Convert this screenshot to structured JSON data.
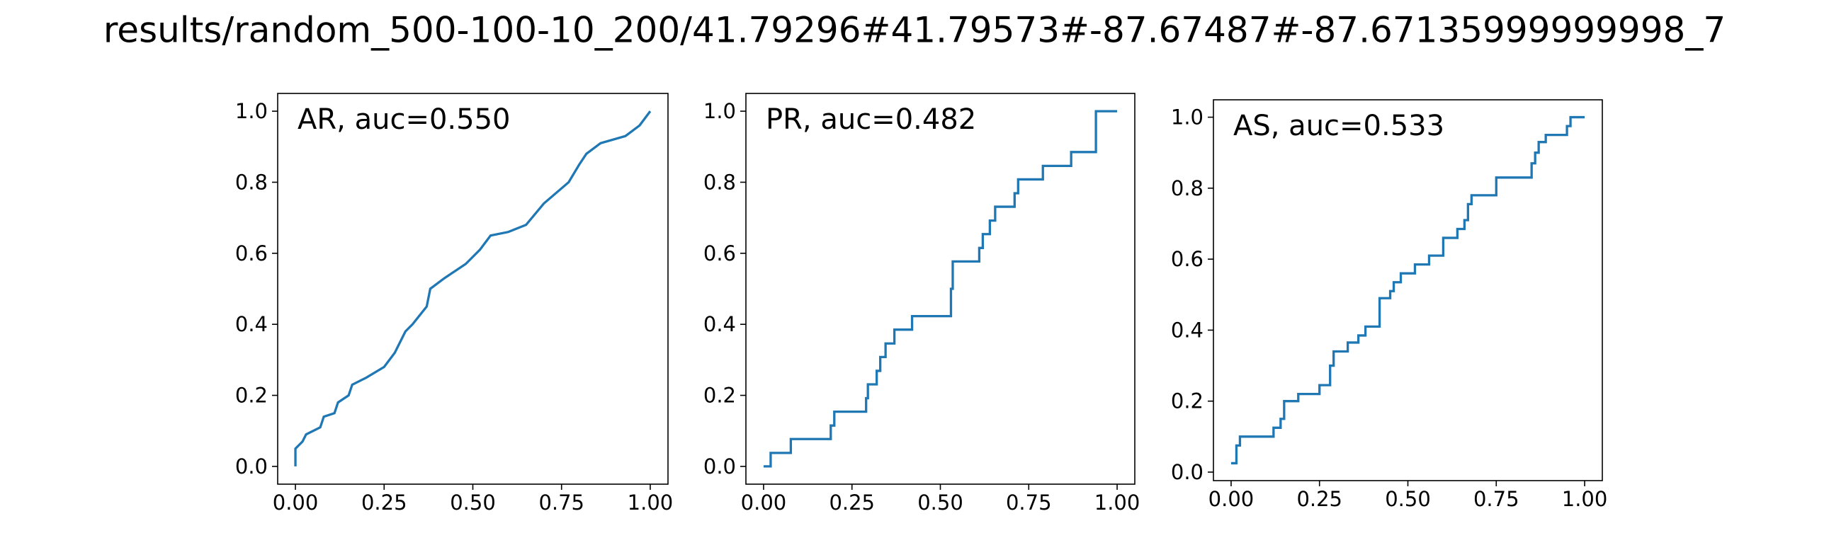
{
  "title": "results/random_500-100-10_200/41.79296#41.79573#-87.67487#-87.67135999999998_7",
  "chart_data": [
    {
      "type": "line",
      "title": "AR, auc=0.550",
      "color": "#1f77b4",
      "x": [
        0,
        0,
        0.02,
        0.03,
        0.07,
        0.08,
        0.11,
        0.12,
        0.15,
        0.16,
        0.2,
        0.25,
        0.28,
        0.31,
        0.33,
        0.37,
        0.38,
        0.42,
        0.48,
        0.52,
        0.55,
        0.6,
        0.65,
        0.7,
        0.77,
        0.8,
        0.82,
        0.86,
        0.93,
        0.97,
        1
      ],
      "values": [
        0,
        0.05,
        0.07,
        0.09,
        0.11,
        0.14,
        0.15,
        0.18,
        0.2,
        0.23,
        0.25,
        0.28,
        0.32,
        0.38,
        0.4,
        0.45,
        0.5,
        0.53,
        0.57,
        0.61,
        0.65,
        0.66,
        0.68,
        0.74,
        0.8,
        0.85,
        0.88,
        0.91,
        0.93,
        0.96,
        1
      ],
      "xlim": [
        -0.05,
        1.05
      ],
      "ylim": [
        -0.05,
        1.05
      ],
      "xticks": [
        {
          "value": 0,
          "label": "0.00"
        },
        {
          "value": 0.25,
          "label": "0.25"
        },
        {
          "value": 0.5,
          "label": "0.50"
        },
        {
          "value": 0.75,
          "label": "0.75"
        },
        {
          "value": 1,
          "label": "1.00"
        }
      ],
      "yticks": [
        {
          "value": 0,
          "label": "0.0"
        },
        0.2,
        0.4,
        0.6,
        0.8,
        {
          "value": 1,
          "label": "1.0"
        }
      ]
    },
    {
      "type": "line",
      "title": "PR, auc=0.482",
      "color": "#1f77b4",
      "x": [
        0,
        0.02,
        0.02,
        0.077,
        0.077,
        0.19,
        0.19,
        0.2,
        0.2,
        0.29,
        0.29,
        0.295,
        0.295,
        0.32,
        0.32,
        0.33,
        0.33,
        0.345,
        0.345,
        0.37,
        0.37,
        0.42,
        0.42,
        0.53,
        0.53,
        0.535,
        0.535,
        0.61,
        0.61,
        0.62,
        0.62,
        0.64,
        0.64,
        0.655,
        0.655,
        0.71,
        0.71,
        0.72,
        0.72,
        0.79,
        0.79,
        0.87,
        0.87,
        0.94,
        0.94,
        1.0
      ],
      "values": [
        0,
        0,
        0.038,
        0.038,
        0.077,
        0.077,
        0.115,
        0.115,
        0.154,
        0.154,
        0.192,
        0.192,
        0.231,
        0.231,
        0.269,
        0.269,
        0.308,
        0.308,
        0.346,
        0.346,
        0.385,
        0.385,
        0.423,
        0.423,
        0.5,
        0.5,
        0.577,
        0.577,
        0.615,
        0.615,
        0.654,
        0.654,
        0.692,
        0.692,
        0.731,
        0.731,
        0.769,
        0.769,
        0.808,
        0.808,
        0.846,
        0.846,
        0.885,
        0.885,
        1.0,
        1.0
      ],
      "xlim": [
        -0.05,
        1.05
      ],
      "ylim": [
        -0.05,
        1.05
      ],
      "xticks": [
        {
          "value": 0,
          "label": "0.00"
        },
        {
          "value": 0.25,
          "label": "0.25"
        },
        {
          "value": 0.5,
          "label": "0.50"
        },
        {
          "value": 0.75,
          "label": "0.75"
        },
        {
          "value": 1,
          "label": "1.00"
        }
      ],
      "yticks": [
        {
          "value": 0,
          "label": "0.0"
        },
        0.2,
        0.4,
        0.6,
        0.8,
        {
          "value": 1,
          "label": "1.0"
        }
      ]
    },
    {
      "type": "line",
      "title": "AS, auc=0.533",
      "color": "#1f77b4",
      "x": [
        0,
        0.015,
        0.015,
        0.025,
        0.025,
        0.12,
        0.12,
        0.14,
        0.14,
        0.15,
        0.15,
        0.19,
        0.19,
        0.25,
        0.25,
        0.28,
        0.28,
        0.29,
        0.29,
        0.33,
        0.33,
        0.36,
        0.36,
        0.38,
        0.38,
        0.42,
        0.42,
        0.45,
        0.45,
        0.46,
        0.46,
        0.48,
        0.48,
        0.52,
        0.52,
        0.56,
        0.56,
        0.6,
        0.6,
        0.64,
        0.64,
        0.66,
        0.66,
        0.67,
        0.67,
        0.68,
        0.68,
        0.75,
        0.75,
        0.85,
        0.85,
        0.86,
        0.86,
        0.87,
        0.87,
        0.89,
        0.89,
        0.95,
        0.95,
        0.96,
        0.96,
        1.0
      ],
      "values": [
        0.025,
        0.025,
        0.075,
        0.075,
        0.1,
        0.1,
        0.125,
        0.125,
        0.15,
        0.15,
        0.2,
        0.2,
        0.22,
        0.22,
        0.245,
        0.245,
        0.3,
        0.3,
        0.34,
        0.34,
        0.365,
        0.365,
        0.385,
        0.385,
        0.41,
        0.41,
        0.49,
        0.49,
        0.51,
        0.51,
        0.535,
        0.535,
        0.56,
        0.56,
        0.585,
        0.585,
        0.61,
        0.61,
        0.66,
        0.66,
        0.685,
        0.685,
        0.71,
        0.71,
        0.755,
        0.755,
        0.78,
        0.78,
        0.83,
        0.83,
        0.87,
        0.87,
        0.9,
        0.9,
        0.93,
        0.93,
        0.95,
        0.95,
        0.975,
        0.975,
        1.0,
        1.0
      ],
      "xlim": [
        -0.05,
        1.05
      ],
      "ylim": [
        -0.024,
        1.049
      ],
      "xticks": [
        {
          "value": 0,
          "label": "0.00"
        },
        {
          "value": 0.25,
          "label": "0.25"
        },
        {
          "value": 0.5,
          "label": "0.50"
        },
        {
          "value": 0.75,
          "label": "0.75"
        },
        {
          "value": 1,
          "label": "1.00"
        }
      ],
      "yticks": [
        {
          "value": 0,
          "label": "0.0"
        },
        0.2,
        0.4,
        0.6,
        0.8,
        {
          "value": 1,
          "label": "1.0"
        }
      ]
    }
  ]
}
